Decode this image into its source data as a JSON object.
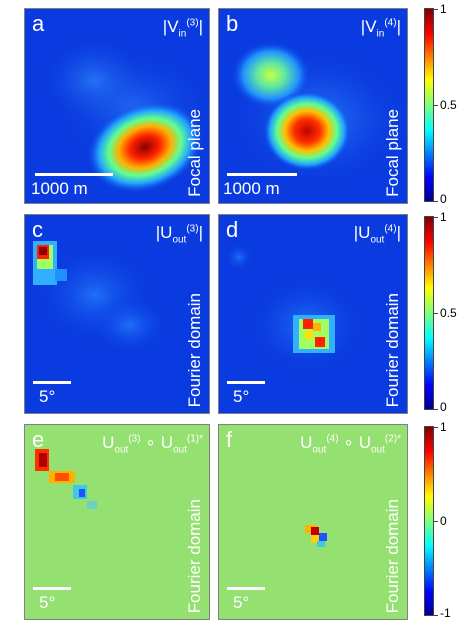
{
  "panels": [
    {
      "letter": "a",
      "quantity": "|V",
      "sub": "in",
      "sup": "(3)",
      "domain": "Focal plane",
      "scale": "1000 m"
    },
    {
      "letter": "b",
      "quantity": "|V",
      "sub": "in",
      "sup": "(4)",
      "domain": "Focal plane",
      "scale": "1000 m"
    },
    {
      "letter": "c",
      "quantity": "|U",
      "sub": "out",
      "sup": "(3)",
      "domain": "Fourier domain",
      "scale": "5°"
    },
    {
      "letter": "d",
      "quantity": "|U",
      "sub": "out",
      "sup": "(4)",
      "domain": "Fourier domain",
      "scale": "5°"
    },
    {
      "letter": "e",
      "q1": "U",
      "q1sub": "out",
      "q1sup": "(3)",
      "op": "∘",
      "q2": "U",
      "q2sub": "out",
      "q2sup": "(1)*",
      "domain": "Fourier domain",
      "scale": "5°"
    },
    {
      "letter": "f",
      "q1": "U",
      "q1sub": "out",
      "q1sup": "(4)",
      "op": "∘",
      "q2": "U",
      "q2sub": "out",
      "q2sup": "(2)*",
      "domain": "Fourier domain",
      "scale": "5°"
    }
  ],
  "colorbars": [
    {
      "ticks": [
        "1",
        "0.5",
        "0"
      ]
    },
    {
      "ticks": [
        "1",
        "0.5",
        "0"
      ]
    },
    {
      "ticks": [
        "1",
        "0",
        "-1"
      ]
    }
  ]
}
